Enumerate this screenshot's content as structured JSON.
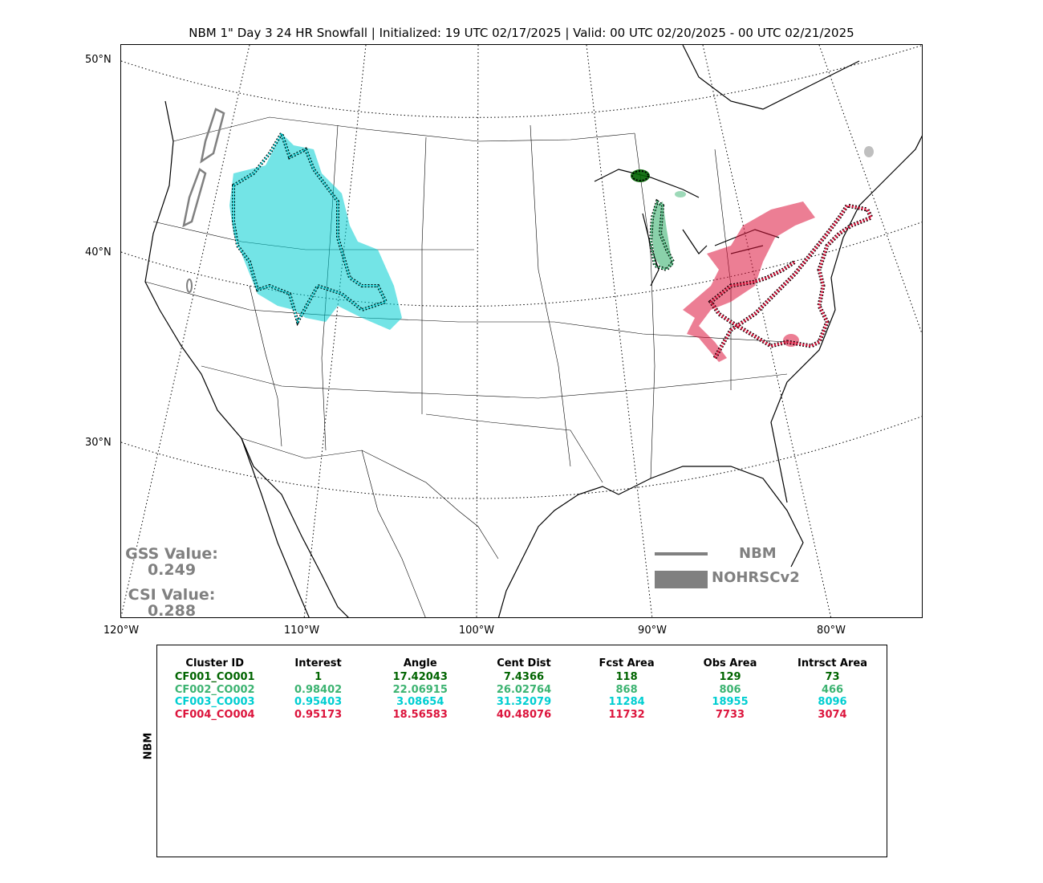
{
  "title": "NBM 1\" Day 3 24 HR Snowfall | Initialized: 19 UTC 02/17/2025 | Valid: 00 UTC 02/20/2025 - 00 UTC 02/21/2025",
  "axes": {
    "lat_labels": [
      "50°N",
      "40°N",
      "30°N"
    ],
    "lon_labels": [
      "120°W",
      "110°W",
      "100°W",
      "90°W",
      "80°W"
    ]
  },
  "scores": {
    "gss_label": "GSS Value:",
    "gss_value": "0.249",
    "csi_label": "CSI Value:",
    "csi_value": "0.288"
  },
  "legend": {
    "forecast_label": "NBM",
    "observed_label": "NOHRSCv2",
    "color": "#808080"
  },
  "table": {
    "side_label": "NBM",
    "headers": [
      "Cluster ID",
      "Interest",
      "Angle",
      "Cent Dist",
      "Fcst Area",
      "Obs Area",
      "Intrsct Area"
    ],
    "rows": [
      {
        "color": "#006400",
        "cells": [
          "CF001_CO001",
          "1",
          "17.42043",
          "7.4366",
          "118",
          "129",
          "73"
        ]
      },
      {
        "color": "#3cb371",
        "cells": [
          "CF002_CO002",
          "0.98402",
          "22.06915",
          "26.02764",
          "868",
          "806",
          "466"
        ]
      },
      {
        "color": "#00ced1",
        "cells": [
          "CF003_CO003",
          "0.95403",
          "3.08654",
          "31.32079",
          "11284",
          "18955",
          "8096"
        ]
      },
      {
        "color": "#dc143c",
        "cells": [
          "CF004_CO004",
          "0.95173",
          "18.56583",
          "40.48076",
          "11732",
          "7733",
          "3074"
        ]
      }
    ]
  },
  "map_colors": {
    "cluster1": "#006400",
    "cluster2": "#3cb371",
    "cluster3": "#00ced1",
    "cluster4": "#dc143c",
    "observed_gray": "#808080"
  }
}
